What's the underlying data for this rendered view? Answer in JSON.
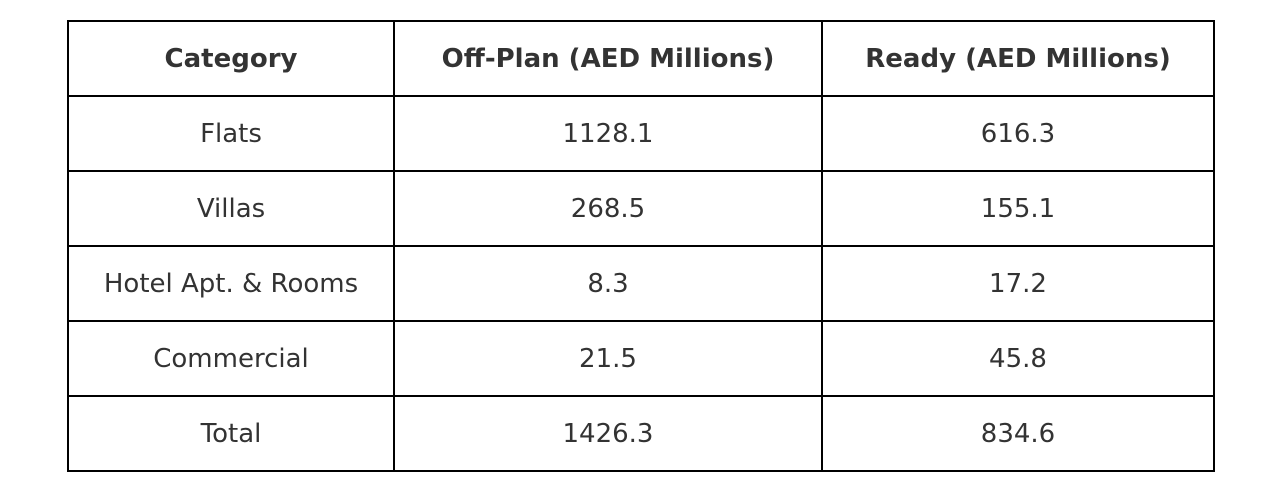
{
  "chart_data": {
    "type": "table",
    "columns": [
      "Category",
      "Off-Plan (AED Millions)",
      "Ready (AED Millions)"
    ],
    "rows": [
      [
        "Flats",
        "1128.1",
        "616.3"
      ],
      [
        "Villas",
        "268.5",
        "155.1"
      ],
      [
        "Hotel Apt. & Rooms",
        "8.3",
        "17.2"
      ],
      [
        "Commercial",
        "21.5",
        "45.8"
      ],
      [
        "Total",
        "1426.3",
        "834.6"
      ]
    ]
  },
  "colors": {
    "text": "#333333",
    "border": "#000000",
    "background": "#ffffff"
  }
}
